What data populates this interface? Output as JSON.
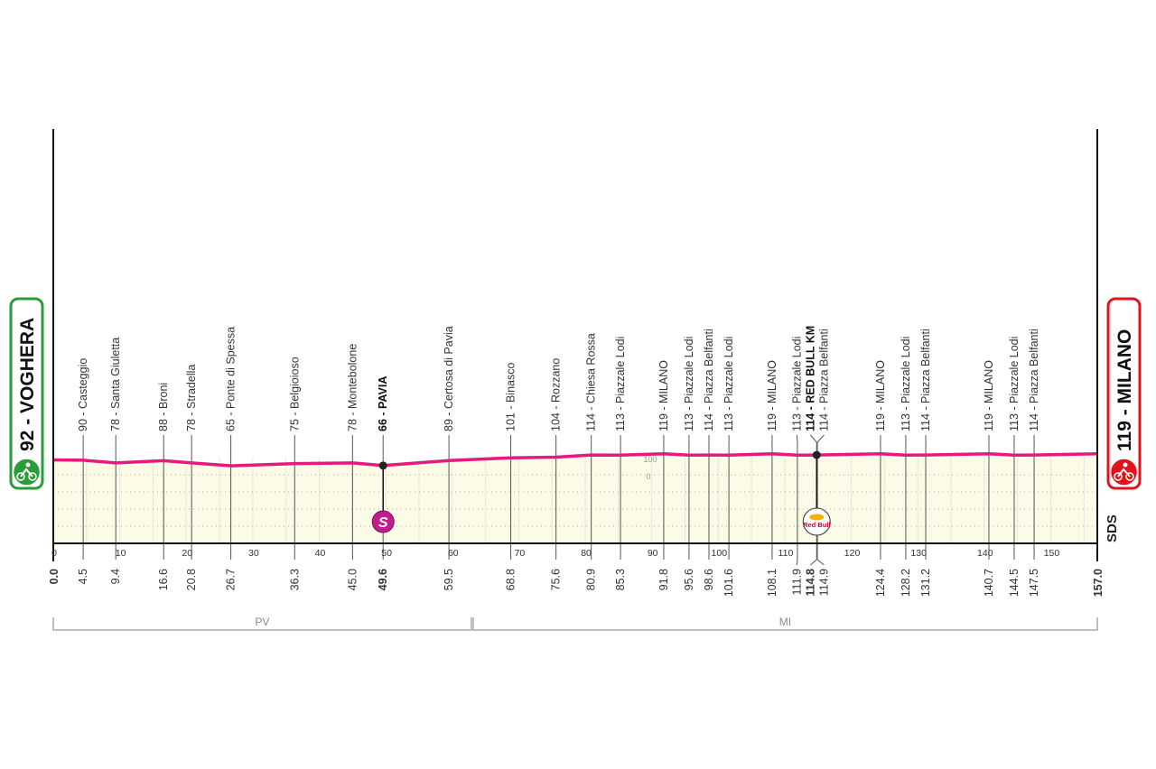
{
  "chart_data": {
    "type": "area",
    "xlim": [
      0,
      157
    ],
    "x_ticks": [
      0,
      10,
      20,
      30,
      40,
      50,
      60,
      70,
      80,
      90,
      100,
      110,
      120,
      130,
      140,
      150
    ],
    "elevation_scale_labels": [
      "100",
      "0"
    ],
    "start": {
      "label": "92 - VOGHERA",
      "km": 0.0,
      "km_label": "0.0",
      "elevation": 92,
      "color": "#2a9d3a"
    },
    "finish": {
      "label": "119 - MILANO",
      "km": 157.0,
      "km_label": "157.0",
      "elevation": 119,
      "color": "#e2141b"
    },
    "line_color": "#e6197f",
    "fill_color": "#fbfbe8",
    "waypoints": [
      {
        "km": 4.5,
        "km_label": "4.5",
        "label": "90 - Casteggio",
        "elevation": 90
      },
      {
        "km": 9.4,
        "km_label": "9.4",
        "label": "78 - Santa Giuletta",
        "elevation": 78
      },
      {
        "km": 16.6,
        "km_label": "16.6",
        "label": "88 - Broni",
        "elevation": 88
      },
      {
        "km": 20.8,
        "km_label": "20.8",
        "label": "78 - Stradella",
        "elevation": 78
      },
      {
        "km": 26.7,
        "km_label": "26.7",
        "label": "65 - Ponte di Spessa",
        "elevation": 65
      },
      {
        "km": 36.3,
        "km_label": "36.3",
        "label": "75 - Belgioioso",
        "elevation": 75
      },
      {
        "km": 45.0,
        "km_label": "45.0",
        "label": "78 - Montebolone",
        "elevation": 78
      },
      {
        "km": 49.6,
        "km_label": "49.6",
        "label": "66 - PAVIA",
        "elevation": 66,
        "bold": true,
        "marker": "sprint",
        "marker_label": "S"
      },
      {
        "km": 59.5,
        "km_label": "59.5",
        "label": "89 - Certosa di Pavia",
        "elevation": 89
      },
      {
        "km": 68.8,
        "km_label": "68.8",
        "label": "101 - Binasco",
        "elevation": 101
      },
      {
        "km": 75.6,
        "km_label": "75.6",
        "label": "104 - Rozzano",
        "elevation": 104
      },
      {
        "km": 80.9,
        "km_label": "80.9",
        "label": "114 - Chiesa Rossa",
        "elevation": 114
      },
      {
        "km": 85.3,
        "km_label": "85.3",
        "label": "113 - Piazzale Lodi",
        "elevation": 113
      },
      {
        "km": 91.8,
        "km_label": "91.8",
        "label": "119 - MILANO",
        "elevation": 119
      },
      {
        "km": 95.6,
        "km_label": "95.6",
        "label": "113 - Piazzale Lodi",
        "elevation": 113
      },
      {
        "km": 98.6,
        "km_label": "98.6",
        "label": "114 - Piazza Belfanti",
        "elevation": 114
      },
      {
        "km": 101.6,
        "km_label": "101.6",
        "label": "113 - Piazzale Lodi",
        "elevation": 113
      },
      {
        "km": 108.1,
        "km_label": "108.1",
        "label": "119 - MILANO",
        "elevation": 119
      },
      {
        "km": 111.9,
        "km_label": "111.9",
        "label": "113 - Piazzale Lodi",
        "elevation": 113
      },
      {
        "km": 114.8,
        "km_label": "114.8",
        "label": "114 - RED BULL KM",
        "elevation": 114,
        "bold": true,
        "marker": "redbull",
        "marker_label": "Red Bull"
      },
      {
        "km": 114.9,
        "km_label": "114.9",
        "label": "114 - Piazza Belfanti",
        "elevation": 114
      },
      {
        "km": 124.4,
        "km_label": "124.4",
        "label": "119 - MILANO",
        "elevation": 119
      },
      {
        "km": 128.2,
        "km_label": "128.2",
        "label": "113 - Piazzale Lodi",
        "elevation": 113
      },
      {
        "km": 131.2,
        "km_label": "131.2",
        "label": "114 - Piazza Belfanti",
        "elevation": 114
      },
      {
        "km": 140.7,
        "km_label": "140.7",
        "label": "119 - MILANO",
        "elevation": 119
      },
      {
        "km": 144.5,
        "km_label": "144.5",
        "label": "113 - Piazzale Lodi",
        "elevation": 113
      },
      {
        "km": 147.5,
        "km_label": "147.5",
        "label": "114 - Piazza Belfanti",
        "elevation": 114
      }
    ],
    "provinces": [
      {
        "label": "PV",
        "from_km": 0,
        "to_km": 63
      },
      {
        "label": "MI",
        "from_km": 63,
        "to_km": 157
      }
    ]
  },
  "logo": "SDS"
}
